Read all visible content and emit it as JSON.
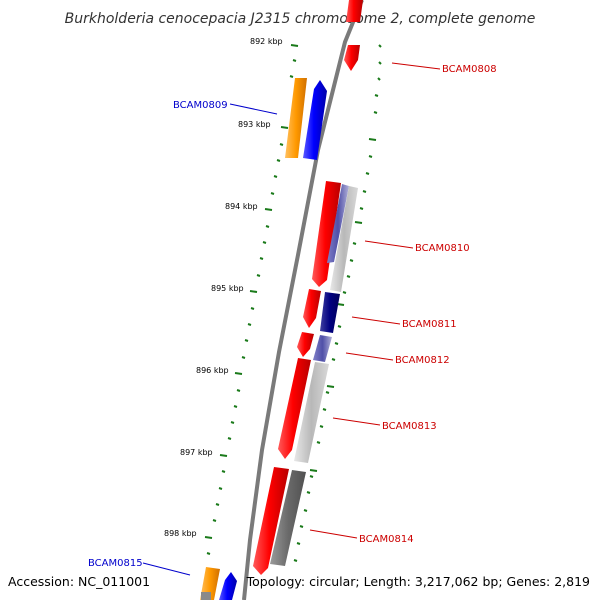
{
  "title": "Burkholderia cenocepacia J2315 chromosome 2, complete genome",
  "footer": {
    "accession": "Accession: NC_011001",
    "summary": "Topology: circular; Length: 3,217,062 bp; Genes: 2,819"
  },
  "ticks": [
    "892 kbp",
    "893 kbp",
    "894 kbp",
    "895 kbp",
    "896 kbp",
    "897 kbp",
    "898 kbp"
  ],
  "genes": [
    {
      "label": "BCAM0808",
      "strand": "reverse",
      "color": "#ff0000"
    },
    {
      "label": "BCAM0809",
      "strand": "forward",
      "color": "#0000ff"
    },
    {
      "label": "BCAM0810",
      "strand": "reverse",
      "color": "#ff0000"
    },
    {
      "label": "BCAM0811",
      "strand": "reverse",
      "color": "#ff0000"
    },
    {
      "label": "BCAM0812",
      "strand": "reverse",
      "color": "#ff0000"
    },
    {
      "label": "BCAM0813",
      "strand": "reverse",
      "color": "#ff0000"
    },
    {
      "label": "BCAM0814",
      "strand": "reverse",
      "color": "#ff0000"
    },
    {
      "label": "BCAM0815",
      "strand": "forward",
      "color": "#0000ff"
    }
  ],
  "colors": {
    "forward_label": "#0000cc",
    "reverse_label": "#cc0000",
    "cds_reverse": "#ff0000",
    "cds_forward": "#0000ff",
    "orange_feature": "#ff9900",
    "tick": "#1a7a1a",
    "backbone": "#808080"
  }
}
